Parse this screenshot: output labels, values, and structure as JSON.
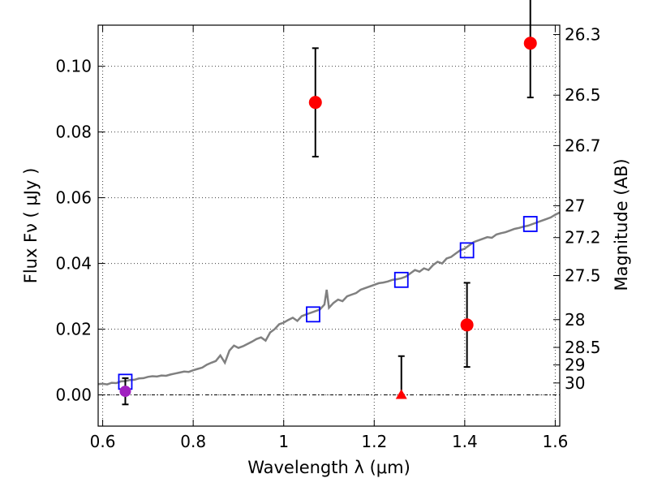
{
  "chart_data": {
    "type": "scatter",
    "title": "",
    "xlabel": "Wavelength  λ (μm)",
    "ylabel": "Flux  Fν  ( μJy )",
    "ylabel_right": "Magnitude (AB)",
    "xlim": [
      0.59,
      1.61
    ],
    "ylim": [
      -0.0095,
      0.1125
    ],
    "grid": true,
    "x_ticks": [
      {
        "value": 0.6,
        "label": "0.6"
      },
      {
        "value": 0.8,
        "label": "0.8"
      },
      {
        "value": 1.0,
        "label": "1"
      },
      {
        "value": 1.2,
        "label": "1.2"
      },
      {
        "value": 1.4,
        "label": "1.4"
      },
      {
        "value": 1.6,
        "label": "1.6"
      }
    ],
    "y_ticks": [
      {
        "value": 0.0,
        "label": "0.00"
      },
      {
        "value": 0.02,
        "label": "0.02"
      },
      {
        "value": 0.04,
        "label": "0.04"
      },
      {
        "value": 0.06,
        "label": "0.06"
      },
      {
        "value": 0.08,
        "label": "0.08"
      },
      {
        "value": 0.1,
        "label": "0.10"
      }
    ],
    "magnitude_ticks": [
      {
        "mag": 26.3,
        "label": "26.3"
      },
      {
        "mag": 26.5,
        "label": "26.5"
      },
      {
        "mag": 26.7,
        "label": "26.7"
      },
      {
        "mag": 27.0,
        "label": "27"
      },
      {
        "mag": 27.2,
        "label": "27.2"
      },
      {
        "mag": 27.5,
        "label": "27.5"
      },
      {
        "mag": 28.0,
        "label": "28"
      },
      {
        "mag": 28.5,
        "label": "28.5"
      },
      {
        "mag": 29.0,
        "label": "29"
      },
      {
        "mag": 30.0,
        "label": "30"
      }
    ],
    "colors": {
      "spectrum": "#808080",
      "model_points": "#0000ff",
      "detections": "#ff0000",
      "upper_limit": "#ff0000",
      "optical_point": "#a020c0",
      "errorbars": "#000000"
    },
    "series": [
      {
        "kind": "line",
        "points": [
          [
            0.59,
            0.0033
          ],
          [
            0.6,
            0.0034
          ],
          [
            0.61,
            0.0032
          ],
          [
            0.62,
            0.0037
          ],
          [
            0.63,
            0.0036
          ],
          [
            0.64,
            0.0041
          ],
          [
            0.65,
            0.0042
          ],
          [
            0.66,
            0.0045
          ],
          [
            0.67,
            0.0046
          ],
          [
            0.68,
            0.005
          ],
          [
            0.69,
            0.0051
          ],
          [
            0.7,
            0.0055
          ],
          [
            0.71,
            0.0057
          ],
          [
            0.72,
            0.0056
          ],
          [
            0.73,
            0.0059
          ],
          [
            0.74,
            0.0058
          ],
          [
            0.75,
            0.0062
          ],
          [
            0.76,
            0.0065
          ],
          [
            0.77,
            0.0068
          ],
          [
            0.78,
            0.0071
          ],
          [
            0.79,
            0.007
          ],
          [
            0.8,
            0.0075
          ],
          [
            0.81,
            0.0079
          ],
          [
            0.82,
            0.0083
          ],
          [
            0.83,
            0.0092
          ],
          [
            0.84,
            0.0098
          ],
          [
            0.85,
            0.0103
          ],
          [
            0.86,
            0.012
          ],
          [
            0.87,
            0.0098
          ],
          [
            0.88,
            0.0135
          ],
          [
            0.89,
            0.015
          ],
          [
            0.9,
            0.0143
          ],
          [
            0.91,
            0.0148
          ],
          [
            0.92,
            0.0155
          ],
          [
            0.93,
            0.0162
          ],
          [
            0.94,
            0.017
          ],
          [
            0.95,
            0.0175
          ],
          [
            0.96,
            0.0165
          ],
          [
            0.97,
            0.019
          ],
          [
            0.98,
            0.02
          ],
          [
            0.99,
            0.0215
          ],
          [
            1.0,
            0.022
          ],
          [
            1.01,
            0.0228
          ],
          [
            1.02,
            0.0235
          ],
          [
            1.03,
            0.0225
          ],
          [
            1.04,
            0.024
          ],
          [
            1.05,
            0.0245
          ],
          [
            1.06,
            0.025
          ],
          [
            1.07,
            0.0255
          ],
          [
            1.08,
            0.026
          ],
          [
            1.09,
            0.0275
          ],
          [
            1.095,
            0.032
          ],
          [
            1.1,
            0.0265
          ],
          [
            1.11,
            0.028
          ],
          [
            1.12,
            0.029
          ],
          [
            1.13,
            0.0285
          ],
          [
            1.14,
            0.03
          ],
          [
            1.15,
            0.0305
          ],
          [
            1.16,
            0.031
          ],
          [
            1.17,
            0.032
          ],
          [
            1.18,
            0.0325
          ],
          [
            1.19,
            0.033
          ],
          [
            1.2,
            0.0335
          ],
          [
            1.21,
            0.034
          ],
          [
            1.22,
            0.0342
          ],
          [
            1.23,
            0.0345
          ],
          [
            1.24,
            0.035
          ],
          [
            1.25,
            0.0352
          ],
          [
            1.26,
            0.0355
          ],
          [
            1.27,
            0.036
          ],
          [
            1.28,
            0.037
          ],
          [
            1.29,
            0.038
          ],
          [
            1.3,
            0.0375
          ],
          [
            1.31,
            0.0385
          ],
          [
            1.32,
            0.038
          ],
          [
            1.33,
            0.0395
          ],
          [
            1.34,
            0.0405
          ],
          [
            1.35,
            0.04
          ],
          [
            1.36,
            0.0415
          ],
          [
            1.37,
            0.042
          ],
          [
            1.38,
            0.043
          ],
          [
            1.39,
            0.044
          ],
          [
            1.4,
            0.0445
          ],
          [
            1.41,
            0.0455
          ],
          [
            1.42,
            0.0465
          ],
          [
            1.43,
            0.047
          ],
          [
            1.44,
            0.0475
          ],
          [
            1.45,
            0.048
          ],
          [
            1.46,
            0.0478
          ],
          [
            1.47,
            0.0488
          ],
          [
            1.48,
            0.0492
          ],
          [
            1.49,
            0.0495
          ],
          [
            1.5,
            0.05
          ],
          [
            1.51,
            0.0505
          ],
          [
            1.52,
            0.0508
          ],
          [
            1.53,
            0.0512
          ],
          [
            1.54,
            0.0515
          ],
          [
            1.55,
            0.052
          ],
          [
            1.56,
            0.0525
          ],
          [
            1.57,
            0.053
          ],
          [
            1.58,
            0.0535
          ],
          [
            1.59,
            0.054
          ],
          [
            1.6,
            0.0548
          ],
          [
            1.61,
            0.0555
          ]
        ]
      },
      {
        "kind": "open-squares",
        "points": [
          [
            0.65,
            0.004
          ],
          [
            1.065,
            0.0245
          ],
          [
            1.26,
            0.035
          ],
          [
            1.405,
            0.044
          ],
          [
            1.545,
            0.052
          ]
        ]
      },
      {
        "kind": "filled-circles",
        "points": [
          {
            "x": 1.07,
            "y": 0.089,
            "err": 0.0165
          },
          {
            "x": 1.545,
            "y": 0.107,
            "err": 0.0165
          },
          {
            "x": 1.405,
            "y": 0.0213,
            "err": 0.0128
          }
        ]
      },
      {
        "kind": "triangle",
        "points": [
          {
            "x": 1.26,
            "y": 0.0,
            "err_up": 0.0118,
            "err_down": 0.0
          }
        ]
      },
      {
        "kind": "purple-circle",
        "points": [
          {
            "x": 0.65,
            "y": 0.0011,
            "err": 0.004
          }
        ]
      }
    ]
  }
}
